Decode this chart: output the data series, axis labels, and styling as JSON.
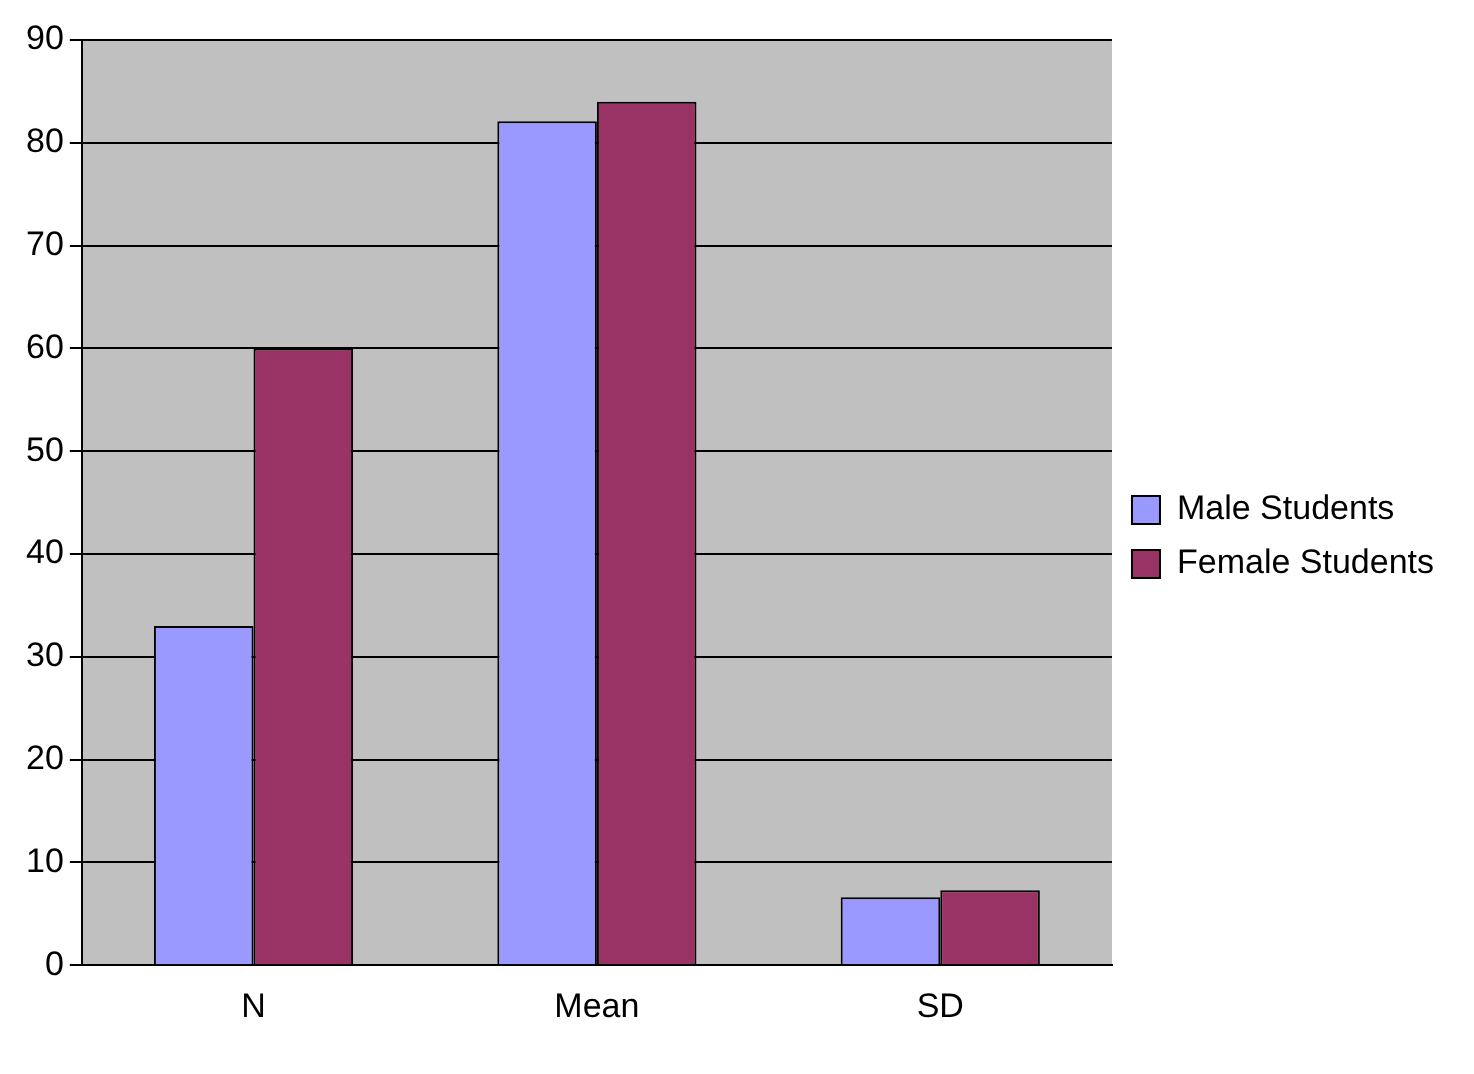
{
  "chart_data": {
    "type": "bar",
    "categories": [
      "N",
      "Mean",
      "SD"
    ],
    "series": [
      {
        "name": "Male Students",
        "color": "#9999ff",
        "values": [
          33,
          82.1,
          6.6
        ]
      },
      {
        "name": "Female Students",
        "color": "#993366",
        "values": [
          60,
          84,
          7.3
        ]
      }
    ],
    "ylim": [
      0,
      90
    ],
    "yticks": [
      0,
      10,
      20,
      30,
      40,
      50,
      60,
      70,
      80,
      90
    ],
    "grid": "y",
    "legend": "right"
  }
}
